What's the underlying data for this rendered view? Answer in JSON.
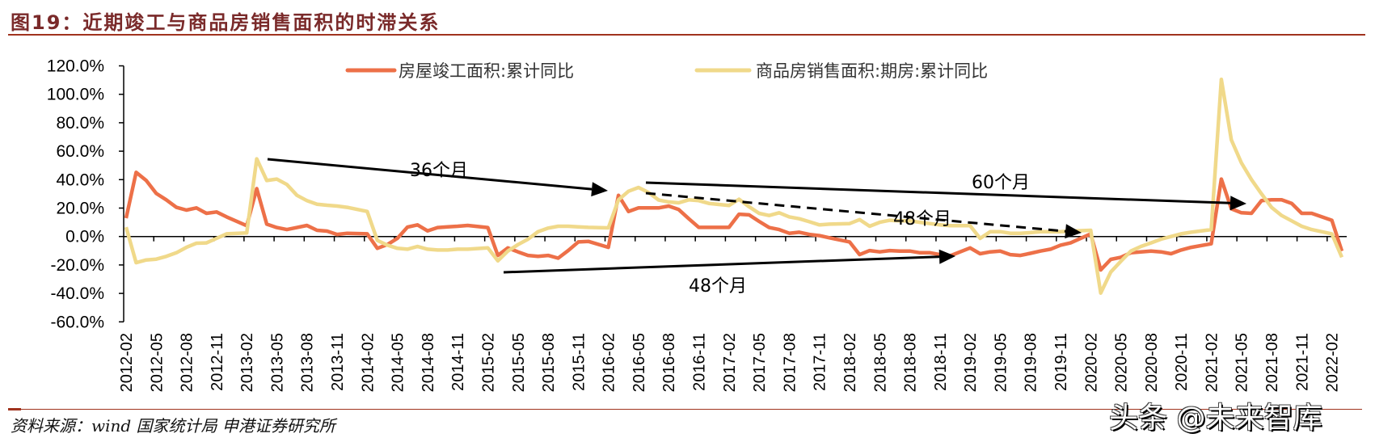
{
  "title": "图19：近期竣工与商品房销售面积的时滞关系",
  "source": "资料来源：wind 国家统计局 申港证券研究所",
  "watermark": "头条 @未来智库",
  "chart_data": {
    "type": "line",
    "title": "",
    "xlabel": "",
    "ylabel": "",
    "ylim": [
      -60,
      120
    ],
    "y_tick_step": 20,
    "y_tick_labels": [
      "120.0%",
      "100.0%",
      "80.0%",
      "60.0%",
      "40.0%",
      "20.0%",
      "0.0%",
      "-20.0%",
      "-40.0%",
      "-60.0%"
    ],
    "legend_position": "top",
    "grid": false,
    "x": [
      "2012-02",
      "2012-03",
      "2012-04",
      "2012-05",
      "2012-06",
      "2012-07",
      "2012-08",
      "2012-09",
      "2012-10",
      "2012-11",
      "2012-12",
      "2013-01",
      "2013-02",
      "2013-03",
      "2013-04",
      "2013-05",
      "2013-06",
      "2013-07",
      "2013-08",
      "2013-09",
      "2013-10",
      "2013-11",
      "2013-12",
      "2014-01",
      "2014-02",
      "2014-03",
      "2014-04",
      "2014-05",
      "2014-06",
      "2014-07",
      "2014-08",
      "2014-09",
      "2014-10",
      "2014-11",
      "2014-12",
      "2015-01",
      "2015-02",
      "2015-03",
      "2015-04",
      "2015-05",
      "2015-06",
      "2015-07",
      "2015-08",
      "2015-09",
      "2015-10",
      "2015-11",
      "2015-12",
      "2016-01",
      "2016-02",
      "2016-03",
      "2016-04",
      "2016-05",
      "2016-06",
      "2016-07",
      "2016-08",
      "2016-09",
      "2016-10",
      "2016-11",
      "2016-12",
      "2017-01",
      "2017-02",
      "2017-03",
      "2017-04",
      "2017-05",
      "2017-06",
      "2017-07",
      "2017-08",
      "2017-09",
      "2017-10",
      "2017-11",
      "2017-12",
      "2018-01",
      "2018-02",
      "2018-03",
      "2018-04",
      "2018-05",
      "2018-06",
      "2018-07",
      "2018-08",
      "2018-09",
      "2018-10",
      "2018-11",
      "2018-12",
      "2019-01",
      "2019-02",
      "2019-03",
      "2019-04",
      "2019-05",
      "2019-06",
      "2019-07",
      "2019-08",
      "2019-09",
      "2019-10",
      "2019-11",
      "2019-12",
      "2020-01",
      "2020-02",
      "2020-03",
      "2020-04",
      "2020-05",
      "2020-06",
      "2020-07",
      "2020-08",
      "2020-09",
      "2020-10",
      "2020-11",
      "2020-12",
      "2021-01",
      "2021-02",
      "2021-03",
      "2021-04",
      "2021-05",
      "2021-06",
      "2021-07",
      "2021-08",
      "2021-09",
      "2021-10",
      "2021-11",
      "2021-12",
      "2022-01",
      "2022-02",
      "2022-03"
    ],
    "x_tick_labels": [
      "2012-02",
      "2012-05",
      "2012-08",
      "2012-11",
      "2013-02",
      "2013-05",
      "2013-08",
      "2013-11",
      "2014-02",
      "2014-05",
      "2014-08",
      "2014-11",
      "2015-02",
      "2015-05",
      "2015-08",
      "2015-11",
      "2016-02",
      "2016-05",
      "2016-08",
      "2016-11",
      "2017-02",
      "2017-05",
      "2017-08",
      "2017-11",
      "2018-02",
      "2018-05",
      "2018-08",
      "2018-11",
      "2019-02",
      "2019-05",
      "2019-08",
      "2019-11",
      "2020-02",
      "2020-05",
      "2020-08",
      "2020-11",
      "2021-02",
      "2021-05",
      "2021-08",
      "2021-11",
      "2022-02"
    ],
    "series": [
      {
        "name": "房屋竣工面积:累计同比",
        "color": "#ED7048",
        "values": [
          12.9,
          45.1,
          39.4,
          30.3,
          25.8,
          20.5,
          18.6,
          20.1,
          16.3,
          17.3,
          13.8,
          null,
          7.6,
          33.7,
          8.7,
          6.3,
          4.9,
          6.3,
          7.8,
          4.4,
          3.8,
          1.5,
          2.3,
          null,
          1.9,
          -8.3,
          -5.7,
          -1.3,
          6.6,
          8.2,
          4.0,
          6.3,
          6.8,
          7.2,
          7.8,
          null,
          6.3,
          -13.3,
          -8.0,
          -10.8,
          -13.3,
          -14.0,
          -13.3,
          -15.2,
          -9.9,
          -3.8,
          -3.4,
          null,
          -7.6,
          29.0,
          17.6,
          20.1,
          20.1,
          20.1,
          21.4,
          19.0,
          12.5,
          6.4,
          6.4,
          null,
          6.4,
          15.7,
          15.2,
          10.6,
          6.3,
          4.9,
          2.3,
          3.0,
          1.5,
          0.6,
          -0.9,
          null,
          -3.8,
          -12.7,
          -9.9,
          -10.8,
          -9.9,
          -10.2,
          -10.2,
          -11.4,
          -11.4,
          -12.7,
          -13.6,
          null,
          -8.0,
          -12.1,
          -10.8,
          -10.2,
          -12.7,
          -13.3,
          -11.8,
          -10.2,
          -8.9,
          -6.1,
          -4.5,
          null,
          1.9,
          -23.5,
          -16.1,
          -14.6,
          -11.4,
          -10.8,
          -10.2,
          -10.8,
          -12.1,
          -9.5,
          -7.6,
          null,
          -5.1,
          40.4,
          19.5,
          16.7,
          16.3,
          25.2,
          25.8,
          25.8,
          23.3,
          16.3,
          16.3,
          null,
          11.4,
          -10.2
        ]
      },
      {
        "name": "商品房销售面积:期房:累计同比",
        "color": "#F0D98A",
        "values": [
          6.6,
          -18.4,
          -16.5,
          -15.9,
          -14.0,
          -11.4,
          -7.6,
          -4.7,
          -4.5,
          -1.3,
          1.9,
          null,
          2.5,
          54.6,
          39.4,
          40.4,
          36.6,
          29.0,
          25.2,
          22.7,
          22.0,
          21.4,
          20.5,
          null,
          17.6,
          -2.7,
          -6.1,
          -8.3,
          -8.9,
          -7.0,
          -8.9,
          -9.5,
          -9.5,
          -8.9,
          -8.9,
          null,
          -8.0,
          -17.1,
          -10.2,
          -5.7,
          -1.9,
          3.4,
          5.9,
          7.2,
          7.2,
          6.8,
          6.4,
          null,
          6.1,
          25.8,
          31.8,
          34.5,
          30.9,
          25.6,
          24.3,
          23.7,
          25.8,
          25.2,
          23.3,
          null,
          21.8,
          26.2,
          20.9,
          16.3,
          14.8,
          16.7,
          13.8,
          12.5,
          10.4,
          8.2,
          8.7,
          null,
          9.1,
          11.9,
          7.2,
          10.0,
          11.4,
          11.0,
          11.0,
          10.0,
          9.1,
          8.2,
          7.6,
          null,
          7.6,
          -1.3,
          3.4,
          3.4,
          2.3,
          2.3,
          2.7,
          3.4,
          3.4,
          3.4,
          3.8,
          null,
          4.4,
          -39.8,
          -25.0,
          -17.4,
          -10.2,
          -7.0,
          -4.5,
          -1.9,
          0.0,
          1.9,
          3.0,
          null,
          4.9,
          110.5,
          67.9,
          51.8,
          40.0,
          30.0,
          20.5,
          14.8,
          11.0,
          7.2,
          4.9,
          null,
          1.9,
          -14.6
        ]
      }
    ],
    "annotations": [
      {
        "text": "36个月",
        "style": "solid"
      },
      {
        "text": "60个月",
        "style": "solid"
      },
      {
        "text": "48个月",
        "style": "dashed"
      },
      {
        "text": "48个月",
        "style": "solid"
      }
    ]
  }
}
